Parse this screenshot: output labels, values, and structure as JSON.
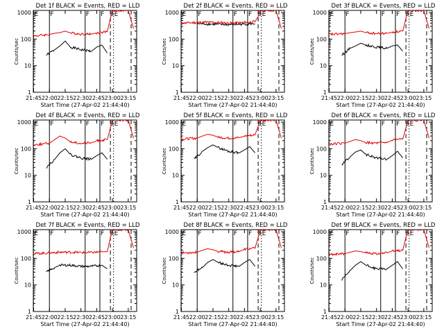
{
  "page": {
    "xlabel": "Start Time (27-Apr-02 21:44:40)",
    "ylabel": "Counts/sec",
    "series_colors": {
      "events": "#000000",
      "lld": "#e00000"
    }
  },
  "chart_data": [
    {
      "type": "line",
      "title": "Det 1f BLACK = Events, RED = LLD",
      "xlabel": "Start Time (27-Apr-02 21:44:40)",
      "ylabel": "Counts/sec",
      "x_ticks": [
        "21:45",
        "22:00",
        "22:15",
        "22:30",
        "22:45",
        "23:00",
        "23:15"
      ],
      "y_ticks": [
        "1",
        "10",
        "100",
        "1000"
      ],
      "yscale": "log",
      "ylim": [
        1,
        1200
      ],
      "xlim": [
        "21:44:40",
        "23:23:00"
      ],
      "markers": {
        "F": [
          "22:00",
          "22:34",
          "22:48"
        ],
        "S": [
          "22:58"
        ],
        "E": [
          "21:45",
          "23:01"
        ]
      },
      "series": [
        {
          "color": "#000000",
          "x": [
            "21:57",
            "22:05",
            "22:10",
            "22:15",
            "22:20",
            "22:30",
            "22:40",
            "22:45",
            "22:50",
            "22:55"
          ],
          "values": [
            25,
            40,
            55,
            85,
            50,
            40,
            35,
            50,
            60,
            30
          ]
        },
        {
          "color": "#e00000",
          "x": [
            "21:45",
            "22:00",
            "22:05",
            "22:10",
            "22:15",
            "22:20",
            "22:30",
            "22:40",
            "22:45",
            "22:55",
            "22:58",
            "23:00",
            "23:15",
            "23:20"
          ],
          "values": [
            130,
            150,
            165,
            175,
            200,
            170,
            155,
            155,
            170,
            190,
            600,
            1200,
            1200,
            250
          ]
        }
      ]
    },
    {
      "type": "line",
      "title": "Det 2f BLACK = Events, RED = LLD",
      "xlabel": "Start Time (27-Apr-02 21:44:40)",
      "ylabel": "Counts/sec",
      "x_ticks": [
        "21:45",
        "22:00",
        "22:15",
        "22:30",
        "22:45",
        "23:00",
        "23:15"
      ],
      "y_ticks": [
        "1",
        "10",
        "100",
        "1000"
      ],
      "yscale": "log",
      "ylim": [
        1,
        1200
      ],
      "xlim": [
        "21:44:40",
        "23:23:00"
      ],
      "markers": {
        "F": [
          "22:00",
          "22:34",
          "22:48"
        ],
        "S": [
          "22:58"
        ],
        "E": [
          "21:45",
          "23:01"
        ]
      },
      "series": [
        {
          "color": "#000000",
          "x": [
            "22:00",
            "22:10",
            "22:20",
            "22:30",
            "22:40",
            "22:48",
            "22:55"
          ],
          "values": [
            380,
            370,
            360,
            350,
            360,
            370,
            380
          ]
        },
        {
          "color": "#e00000",
          "x": [
            "21:45",
            "22:00",
            "22:10",
            "22:20",
            "22:30",
            "22:40",
            "22:48",
            "22:55",
            "22:58",
            "23:00",
            "23:15",
            "23:20"
          ],
          "values": [
            400,
            420,
            430,
            420,
            400,
            410,
            430,
            450,
            700,
            1200,
            1200,
            250
          ]
        }
      ]
    },
    {
      "type": "line",
      "title": "Det 3f BLACK = Events, RED = LLD",
      "xlabel": "Start Time (27-Apr-02 21:44:40)",
      "ylabel": "Counts/sec",
      "x_ticks": [
        "21:45",
        "22:00",
        "22:15",
        "22:30",
        "22:45",
        "23:00",
        "23:15"
      ],
      "y_ticks": [
        "1",
        "10",
        "100",
        "1000"
      ],
      "yscale": "log",
      "ylim": [
        1,
        1200
      ],
      "xlim": [
        "21:44:40",
        "23:23:00"
      ],
      "markers": {
        "F": [
          "22:00",
          "22:34",
          "22:48"
        ],
        "S": [
          "22:58"
        ],
        "E": [
          "21:45",
          "23:01"
        ]
      },
      "series": [
        {
          "color": "#000000",
          "x": [
            "21:57",
            "22:05",
            "22:10",
            "22:15",
            "22:20",
            "22:30",
            "22:40",
            "22:45",
            "22:50",
            "22:55"
          ],
          "values": [
            25,
            45,
            55,
            70,
            60,
            50,
            45,
            55,
            60,
            35
          ]
        },
        {
          "color": "#e00000",
          "x": [
            "21:45",
            "22:00",
            "22:05",
            "22:10",
            "22:15",
            "22:20",
            "22:30",
            "22:40",
            "22:45",
            "22:55",
            "22:58",
            "23:00",
            "23:15",
            "23:20"
          ],
          "values": [
            150,
            160,
            175,
            185,
            200,
            175,
            160,
            165,
            180,
            200,
            600,
            1200,
            1200,
            250
          ]
        }
      ]
    },
    {
      "type": "line",
      "title": "Det 4f BLACK = Events, RED = LLD",
      "xlabel": "Start Time (27-Apr-02 21:44:40)",
      "ylabel": "Counts/sec",
      "x_ticks": [
        "21:45",
        "22:00",
        "22:15",
        "22:30",
        "22:45",
        "23:00",
        "23:15"
      ],
      "y_ticks": [
        "1",
        "10",
        "100",
        "1000"
      ],
      "yscale": "log",
      "ylim": [
        1,
        1200
      ],
      "xlim": [
        "21:44:40",
        "23:23:00"
      ],
      "markers": {
        "F": [
          "22:00",
          "22:34",
          "22:48"
        ],
        "S": [
          "22:58"
        ],
        "E": [
          "21:45",
          "23:01"
        ]
      },
      "series": [
        {
          "color": "#000000",
          "x": [
            "21:57",
            "22:05",
            "22:10",
            "22:15",
            "22:20",
            "22:30",
            "22:40",
            "22:45",
            "22:50",
            "22:55"
          ],
          "values": [
            20,
            40,
            70,
            100,
            60,
            45,
            40,
            55,
            70,
            40
          ]
        },
        {
          "color": "#e00000",
          "x": [
            "21:45",
            "22:00",
            "22:05",
            "22:10",
            "22:15",
            "22:20",
            "22:30",
            "22:40",
            "22:45",
            "22:55",
            "22:58",
            "23:00",
            "23:15",
            "23:20"
          ],
          "values": [
            140,
            160,
            220,
            300,
            250,
            180,
            160,
            165,
            200,
            220,
            600,
            1200,
            1200,
            250
          ]
        }
      ]
    },
    {
      "type": "line",
      "title": "Det 5f BLACK = Events, RED = LLD",
      "xlabel": "Start Time (27-Apr-02 21:44:40)",
      "ylabel": "Counts/sec",
      "x_ticks": [
        "21:45",
        "22:00",
        "22:15",
        "22:30",
        "22:45",
        "23:00",
        "23:15"
      ],
      "y_ticks": [
        "1",
        "10",
        "100",
        "1000"
      ],
      "yscale": "log",
      "ylim": [
        1,
        1200
      ],
      "xlim": [
        "21:44:40",
        "23:23:00"
      ],
      "markers": {
        "F": [
          "22:00",
          "22:34",
          "22:48"
        ],
        "S": [
          "22:58"
        ],
        "E": [
          "21:45",
          "23:01"
        ]
      },
      "series": [
        {
          "color": "#000000",
          "x": [
            "21:57",
            "22:05",
            "22:10",
            "22:15",
            "22:20",
            "22:30",
            "22:40",
            "22:45",
            "22:50",
            "22:55"
          ],
          "values": [
            40,
            80,
            110,
            140,
            110,
            80,
            70,
            90,
            120,
            70
          ]
        },
        {
          "color": "#e00000",
          "x": [
            "21:45",
            "22:00",
            "22:05",
            "22:10",
            "22:15",
            "22:20",
            "22:30",
            "22:40",
            "22:45",
            "22:55",
            "22:58",
            "23:00",
            "23:15",
            "23:20"
          ],
          "values": [
            230,
            250,
            300,
            350,
            320,
            270,
            250,
            260,
            300,
            330,
            700,
            1200,
            1200,
            250
          ]
        }
      ]
    },
    {
      "type": "line",
      "title": "Det 6f BLACK = Events, RED = LLD",
      "xlabel": "Start Time (27-Apr-02 21:44:40)",
      "ylabel": "Counts/sec",
      "x_ticks": [
        "21:45",
        "22:00",
        "22:15",
        "22:30",
        "22:45",
        "23:00",
        "23:15"
      ],
      "y_ticks": [
        "1",
        "10",
        "100",
        "1000"
      ],
      "yscale": "log",
      "ylim": [
        1,
        1200
      ],
      "xlim": [
        "21:44:40",
        "23:23:00"
      ],
      "markers": {
        "F": [
          "22:00",
          "22:34",
          "22:48"
        ],
        "S": [
          "22:58"
        ],
        "E": [
          "21:45",
          "23:01"
        ]
      },
      "series": [
        {
          "color": "#000000",
          "x": [
            "21:57",
            "22:05",
            "22:10",
            "22:15",
            "22:20",
            "22:30",
            "22:40",
            "22:45",
            "22:50",
            "22:55"
          ],
          "values": [
            25,
            50,
            75,
            90,
            60,
            45,
            40,
            55,
            80,
            45
          ]
        },
        {
          "color": "#e00000",
          "x": [
            "21:45",
            "22:00",
            "22:05",
            "22:10",
            "22:15",
            "22:20",
            "22:30",
            "22:40",
            "22:45",
            "22:55",
            "22:58",
            "23:00",
            "23:15",
            "23:20"
          ],
          "values": [
            150,
            160,
            190,
            220,
            200,
            170,
            160,
            170,
            210,
            230,
            600,
            1200,
            1200,
            250
          ]
        }
      ]
    },
    {
      "type": "line",
      "title": "Det 7f BLACK = Events, RED = LLD",
      "xlabel": "Start Time (27-Apr-02 21:44:40)",
      "ylabel": "Counts/sec",
      "x_ticks": [
        "21:45",
        "22:00",
        "22:15",
        "22:30",
        "22:45",
        "23:00",
        "23:15"
      ],
      "y_ticks": [
        "1",
        "10",
        "100",
        "1000"
      ],
      "yscale": "log",
      "ylim": [
        1,
        1200
      ],
      "xlim": [
        "21:44:40",
        "23:23:00"
      ],
      "markers": {
        "F": [
          "22:00",
          "22:34",
          "22:48"
        ],
        "S": [
          "22:58"
        ],
        "E": [
          "21:45",
          "23:01"
        ]
      },
      "series": [
        {
          "color": "#000000",
          "x": [
            "21:57",
            "22:05",
            "22:10",
            "22:20",
            "22:30",
            "22:40",
            "22:50",
            "22:55"
          ],
          "values": [
            30,
            45,
            55,
            55,
            50,
            50,
            55,
            40
          ]
        },
        {
          "color": "#e00000",
          "x": [
            "21:45",
            "22:00",
            "22:10",
            "22:20",
            "22:30",
            "22:40",
            "22:50",
            "22:55",
            "22:58",
            "23:00",
            "23:15",
            "23:20"
          ],
          "values": [
            150,
            160,
            170,
            170,
            165,
            165,
            175,
            180,
            600,
            1200,
            1200,
            250
          ]
        }
      ]
    },
    {
      "type": "line",
      "title": "Det 8f BLACK = Events, RED = LLD",
      "xlabel": "Start Time (27-Apr-02 21:44:40)",
      "ylabel": "Counts/sec",
      "x_ticks": [
        "21:45",
        "22:00",
        "22:15",
        "22:30",
        "22:45",
        "23:00",
        "23:15"
      ],
      "y_ticks": [
        "1",
        "10",
        "100",
        "1000"
      ],
      "yscale": "log",
      "ylim": [
        1,
        1200
      ],
      "xlim": [
        "21:44:40",
        "23:23:00"
      ],
      "markers": {
        "F": [
          "22:00",
          "22:34",
          "22:48"
        ],
        "S": [
          "22:58"
        ],
        "E": [
          "21:45",
          "23:01"
        ]
      },
      "series": [
        {
          "color": "#000000",
          "x": [
            "21:57",
            "22:05",
            "22:10",
            "22:15",
            "22:20",
            "22:30",
            "22:40",
            "22:45",
            "22:50",
            "22:55"
          ],
          "values": [
            30,
            45,
            70,
            90,
            70,
            55,
            50,
            70,
            90,
            50
          ]
        },
        {
          "color": "#e00000",
          "x": [
            "21:45",
            "22:00",
            "22:05",
            "22:10",
            "22:15",
            "22:20",
            "22:30",
            "22:40",
            "22:45",
            "22:55",
            "22:58",
            "23:00",
            "23:15",
            "23:20"
          ],
          "values": [
            160,
            170,
            200,
            230,
            210,
            180,
            170,
            180,
            220,
            240,
            600,
            1200,
            1200,
            250
          ]
        }
      ]
    },
    {
      "type": "line",
      "title": "Det 9f BLACK = Events, RED = LLD",
      "xlabel": "Start Time (27-Apr-02 21:44:40)",
      "ylabel": "Counts/sec",
      "x_ticks": [
        "21:45",
        "22:00",
        "22:15",
        "22:30",
        "22:45",
        "23:00",
        "23:15"
      ],
      "y_ticks": [
        "1",
        "10",
        "100",
        "1000"
      ],
      "yscale": "log",
      "ylim": [
        1,
        1200
      ],
      "xlim": [
        "21:44:40",
        "23:23:00"
      ],
      "markers": {
        "F": [
          "22:00",
          "22:34",
          "22:48"
        ],
        "S": [
          "22:58"
        ],
        "E": [
          "21:45",
          "23:01"
        ]
      },
      "series": [
        {
          "color": "#000000",
          "x": [
            "21:57",
            "22:05",
            "22:10",
            "22:15",
            "22:20",
            "22:30",
            "22:40",
            "22:45",
            "22:50",
            "22:55"
          ],
          "values": [
            15,
            35,
            55,
            75,
            55,
            40,
            40,
            55,
            75,
            40
          ]
        },
        {
          "color": "#e00000",
          "x": [
            "21:45",
            "22:00",
            "22:05",
            "22:10",
            "22:15",
            "22:20",
            "22:30",
            "22:40",
            "22:45",
            "22:55",
            "22:58",
            "23:00",
            "23:15",
            "23:20"
          ],
          "values": [
            140,
            150,
            170,
            190,
            180,
            160,
            150,
            160,
            190,
            200,
            600,
            1200,
            1200,
            250
          ]
        }
      ]
    }
  ]
}
